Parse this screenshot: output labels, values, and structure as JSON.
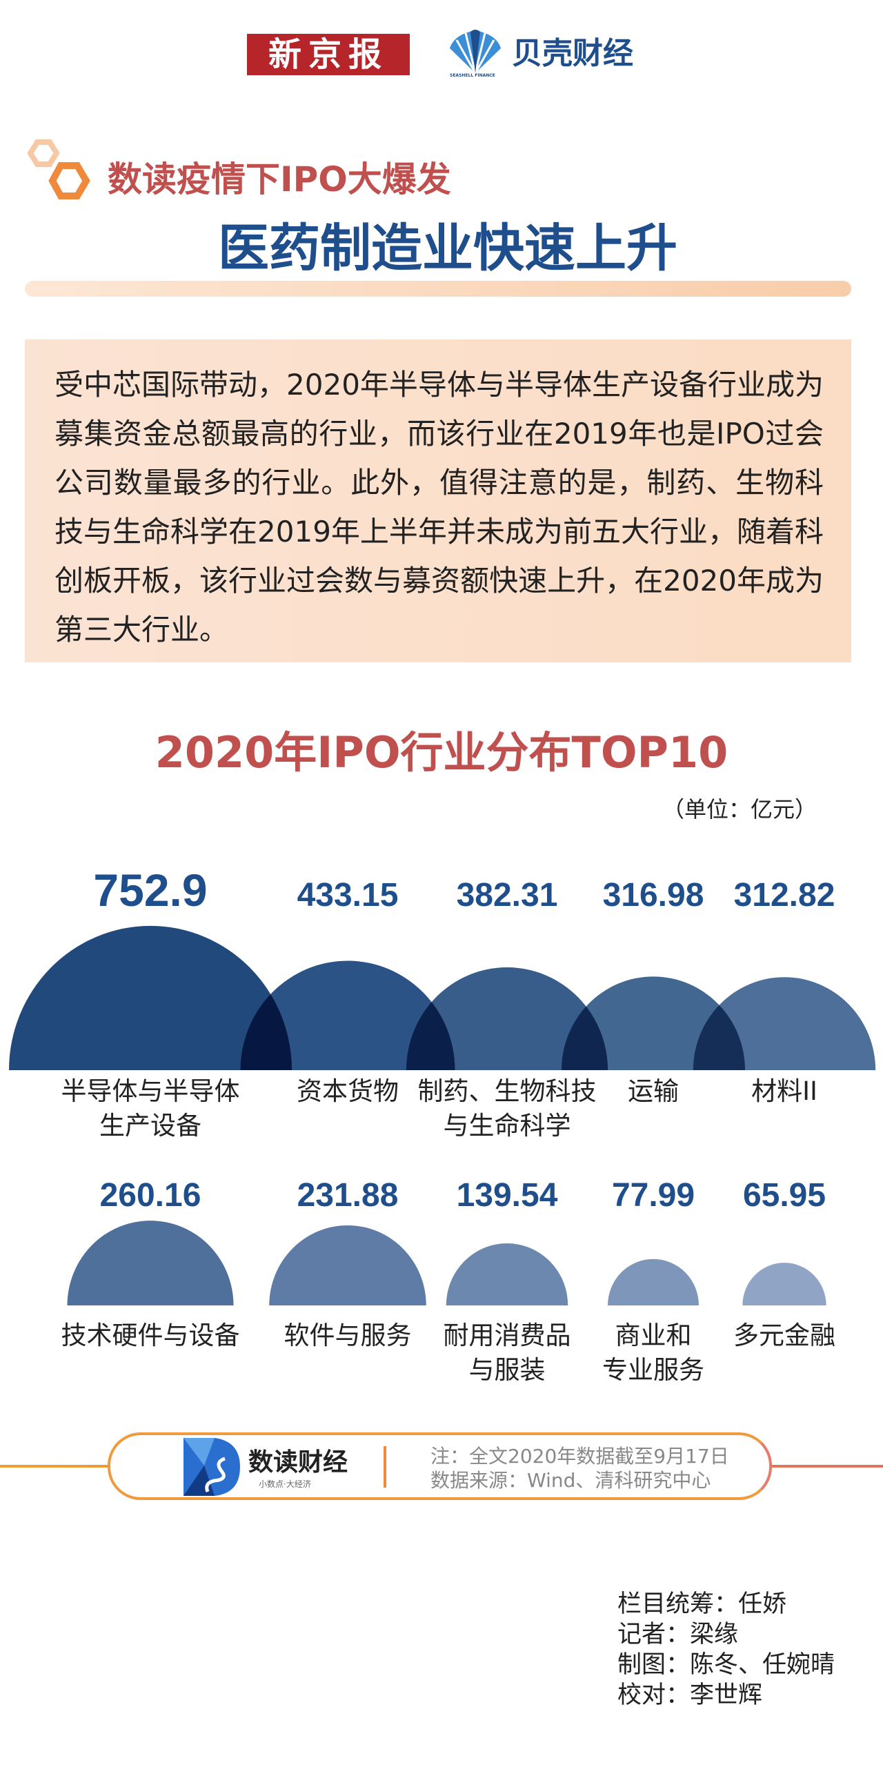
{
  "header": {
    "brand1": "新京报",
    "brand2": "贝壳财经",
    "brand2_sub": "SEASHELL FINANCE"
  },
  "subtitle": "数读疫情下IPO大爆发",
  "title": "医药制造业快速上升",
  "intro": "受中芯国际带动，2020年半导体与半导体生产设备行业成为募集资金总额最高的行业，而该行业在2019年也是IPO过会公司数量最多的行业。此外，值得注意的是，制药、生物科技与生命科学在2019年上半年并未成为前五大行业，随着科创板开板，该行业过会数与募资额快速上升，在2020年成为第三大行业。",
  "chart_data": {
    "type": "bar",
    "title": "2020年IPO行业分布TOP10",
    "unit": "（单位：亿元）",
    "encoding": "semicircle area proportional to value",
    "categories": [
      [
        "半导体与半导体",
        "生产设备"
      ],
      [
        "资本货物"
      ],
      [
        "制药、生物科技",
        "与生命科学"
      ],
      [
        "运输"
      ],
      [
        "材料II"
      ],
      [
        "技术硬件与设备"
      ],
      [
        "软件与服务"
      ],
      [
        "耐用消费品",
        "与服装"
      ],
      [
        "商业和",
        "专业服务"
      ],
      [
        "多元金融"
      ]
    ],
    "values": [
      752.9,
      433.15,
      382.31,
      316.98,
      312.82,
      260.16,
      231.88,
      139.54,
      77.99,
      65.95
    ],
    "value_labels": [
      "752.9",
      "433.15",
      "382.31",
      "316.98",
      "312.82",
      "260.16",
      "231.88",
      "139.54",
      "77.99",
      "65.95"
    ],
    "colors": [
      "#22497c",
      "#2c5386",
      "#385d8b",
      "#426892",
      "#4d6f99",
      "#4f709b",
      "#5e7ca5",
      "#6c88ae",
      "#7e96b9",
      "#90a5c5"
    ]
  },
  "footer": {
    "logo_name": "数读财经",
    "logo_slogan": "小数点·大经济",
    "note": "注：全文2020年数据截至9月17日",
    "source": "数据来源：Wind、清科研究中心"
  },
  "credits": [
    "栏目统筹：任娇",
    "记者：梁缘",
    "制图：陈冬、任婉晴",
    "校对：李世辉"
  ]
}
